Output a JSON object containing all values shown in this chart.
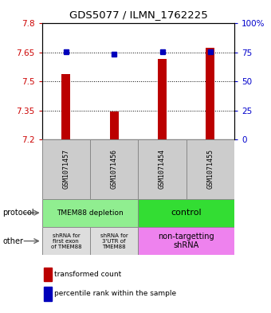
{
  "title": "GDS5077 / ILMN_1762225",
  "samples": [
    "GSM1071457",
    "GSM1071456",
    "GSM1071454",
    "GSM1071455"
  ],
  "red_values": [
    7.538,
    7.345,
    7.618,
    7.672
  ],
  "blue_values": [
    7.652,
    7.642,
    7.653,
    7.655
  ],
  "ylim": [
    7.2,
    7.8
  ],
  "yticks_left": [
    7.2,
    7.35,
    7.5,
    7.65,
    7.8
  ],
  "yticks_right": [
    0,
    25,
    50,
    75,
    100
  ],
  "ytick_labels_left": [
    "7.2",
    "7.35",
    "7.5",
    "7.65",
    "7.8"
  ],
  "ytick_labels_right": [
    "0",
    "25",
    "50",
    "75",
    "100%"
  ],
  "grid_values": [
    7.35,
    7.5,
    7.65
  ],
  "protocol_labels": [
    "TMEM88 depletion",
    "control"
  ],
  "other_labels_left1": "shRNA for\nfirst exon\nof TMEM88",
  "other_labels_left2": "shRNA for\n3'UTR of\nTMEM88",
  "other_labels_right": "non-targetting\nshRNA",
  "protocol_color_left": "#90EE90",
  "protocol_color_right": "#33DD33",
  "other_color_left": "#DDDDDD",
  "other_color_right": "#EE82EE",
  "sample_box_color": "#CCCCCC",
  "bar_color": "#BB0000",
  "dot_color": "#0000BB",
  "left_tick_color": "#CC0000",
  "right_tick_color": "#0000CC",
  "legend_red_label": "transformed count",
  "legend_blue_label": "percentile rank within the sample",
  "protocol_arrow_label": "protocol",
  "other_arrow_label": "other"
}
